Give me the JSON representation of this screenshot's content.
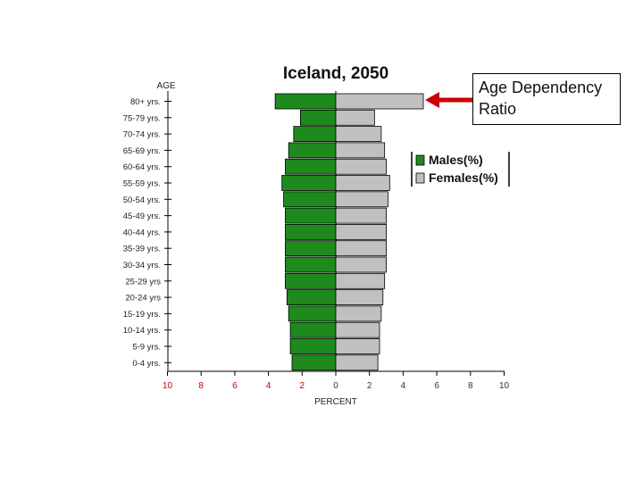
{
  "callout": {
    "text": "Age Dependency Ratio"
  },
  "colors": {
    "male": "#1e8a1e",
    "female": "#c0c0c0",
    "arrow": "#cc0000",
    "red_ticks": "#cc0000"
  },
  "chart_data": {
    "type": "bar",
    "orientation": "horizontal-pyramid",
    "title": "Iceland, 2050",
    "ylabel": "AGE",
    "xlabel": "PERCENT",
    "xlim": [
      -10,
      10
    ],
    "x_ticks": [
      "10",
      "8",
      "6",
      "4",
      "2",
      "0",
      "2",
      "4",
      "6",
      "8",
      "10"
    ],
    "categories": [
      "80+ yrs.",
      "75-79 yrs.",
      "70-74 yrs.",
      "65-69 yrs.",
      "60-64 yrs.",
      "55-59 yrs.",
      "50-54 yrs.",
      "45-49 yrs.",
      "40-44 yrs.",
      "35-39 yrs.",
      "30-34 yrs.",
      "25-29 yrs",
      "20-24 yrs",
      "15-19 yrs.",
      "10-14 yrs.",
      "5-9 yrs.",
      "0-4 yrs."
    ],
    "series": [
      {
        "name": "Males(%)",
        "values": [
          3.6,
          2.1,
          2.5,
          2.8,
          3.0,
          3.2,
          3.1,
          3.0,
          3.0,
          3.0,
          3.0,
          3.0,
          2.9,
          2.8,
          2.7,
          2.7,
          2.6
        ]
      },
      {
        "name": "Females(%)",
        "values": [
          5.2,
          2.3,
          2.7,
          2.9,
          3.0,
          3.2,
          3.1,
          3.0,
          3.0,
          3.0,
          3.0,
          2.9,
          2.8,
          2.7,
          2.6,
          2.6,
          2.5
        ]
      }
    ],
    "legend_position": "right",
    "annotation": "arrow pointing to 80+ yrs. bar"
  }
}
